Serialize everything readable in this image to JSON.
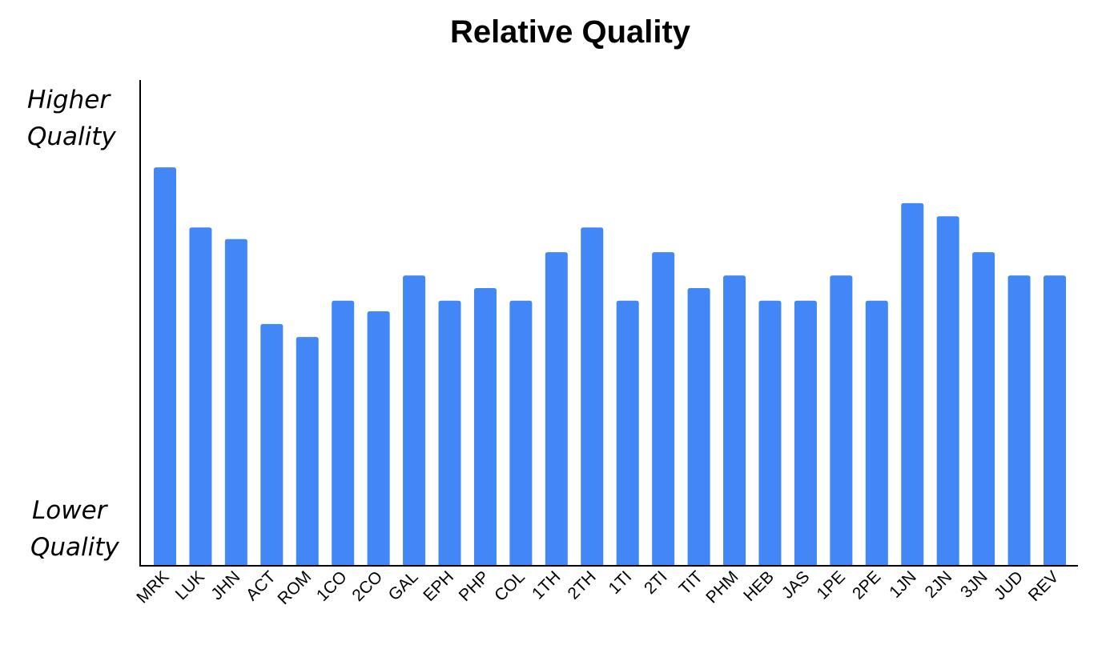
{
  "chart_data": {
    "type": "bar",
    "title": "Relative Quality",
    "xlabel": "",
    "ylabel": "",
    "y_top_label": "Higher Quality",
    "y_top_label_lines": [
      "Higher",
      "Quality"
    ],
    "y_bottom_label_lines": [
      "Lower",
      "Quality"
    ],
    "y_bottom_label": "Lower Quality",
    "ylim": [
      0,
      100
    ],
    "grid": false,
    "bar_color": "#4287f5",
    "categories": [
      "MRK",
      "LUK",
      "JHN",
      "ACT",
      "ROM",
      "1CO",
      "2CO",
      "GAL",
      "EPH",
      "PHP",
      "COL",
      "1TH",
      "2TH",
      "1TI",
      "2TI",
      "TIT",
      "PHM",
      "HEB",
      "JAS",
      "1PE",
      "2PE",
      "1JN",
      "2JN",
      "3JN",
      "JUD",
      "REV"
    ],
    "values": [
      82.0,
      69.6,
      67.2,
      49.7,
      47.0,
      54.5,
      52.3,
      59.7,
      54.5,
      57.1,
      54.5,
      64.5,
      69.6,
      54.5,
      64.5,
      57.1,
      59.7,
      54.5,
      54.5,
      59.7,
      54.5,
      74.6,
      71.9,
      64.5,
      59.7,
      59.7
    ]
  }
}
